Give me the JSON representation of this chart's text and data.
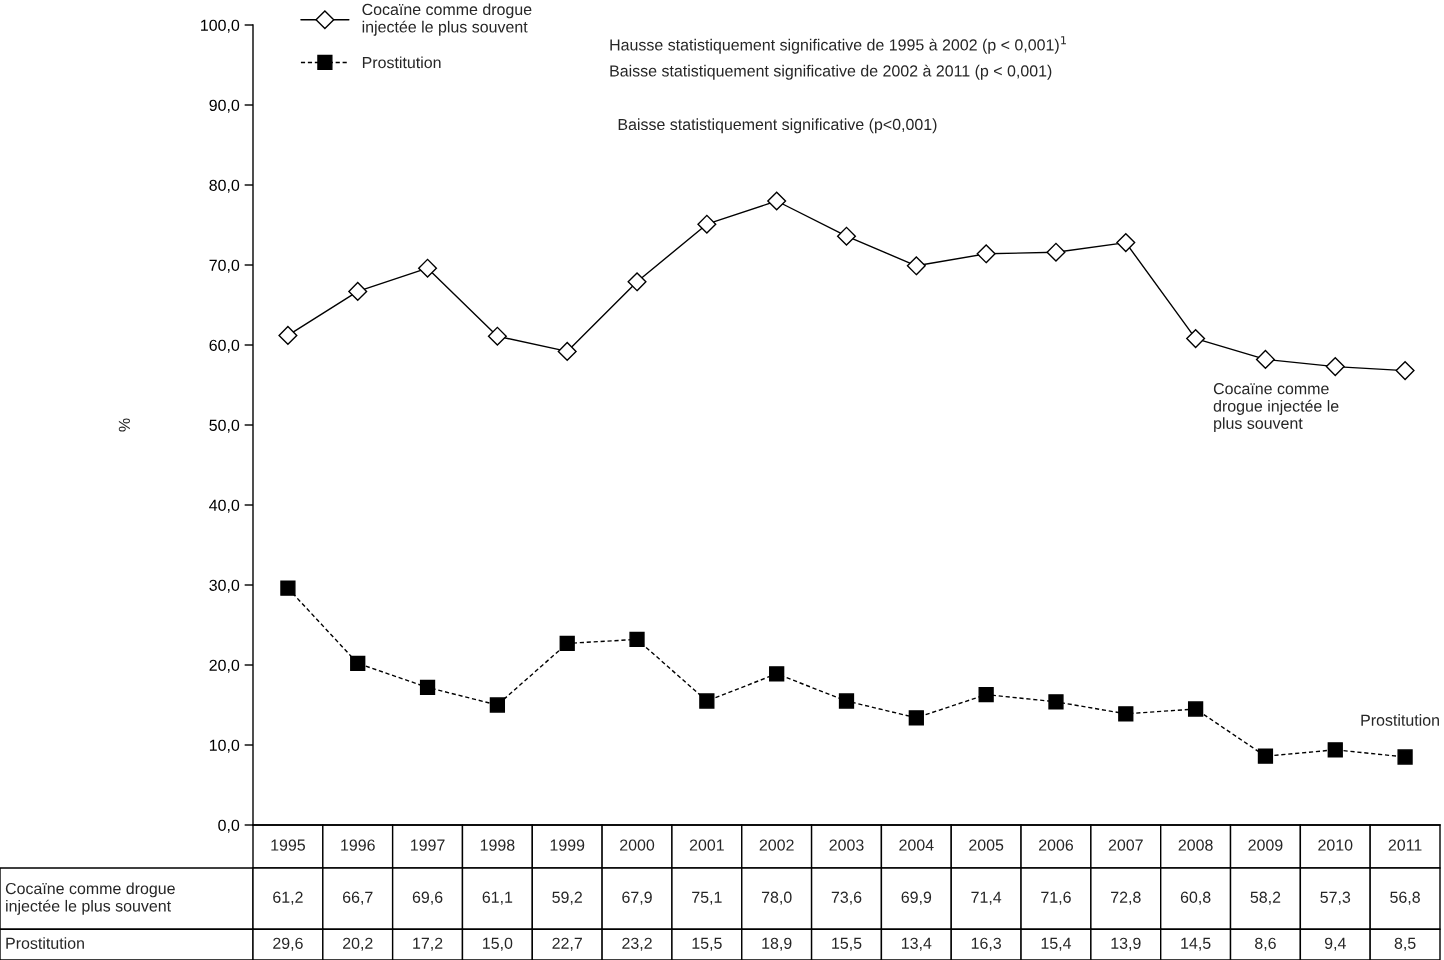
{
  "chart_data": {
    "type": "line",
    "ylabel": "%",
    "categories": [
      "1995",
      "1996",
      "1997",
      "1998",
      "1999",
      "2000",
      "2001",
      "2002",
      "2003",
      "2004",
      "2005",
      "2006",
      "2007",
      "2008",
      "2009",
      "2010",
      "2011"
    ],
    "series": [
      {
        "name": "Cocaïne comme drogue injectée le plus souvent",
        "color": "#000000",
        "marker": "diamond",
        "line_style": "solid",
        "values": [
          61.2,
          66.7,
          69.6,
          61.1,
          59.2,
          67.9,
          75.1,
          78.0,
          73.6,
          69.9,
          71.4,
          71.6,
          72.8,
          60.8,
          58.2,
          57.3,
          56.8
        ],
        "value_labels": [
          "61,2",
          "66,7",
          "69,6",
          "61,1",
          "59,2",
          "67,9",
          "75,1",
          "78,0",
          "73,6",
          "69,9",
          "71,4",
          "71,6",
          "72,8",
          "60,8",
          "58,2",
          "57,3",
          "56,8"
        ]
      },
      {
        "name": "Prostitution",
        "color": "#000000",
        "marker": "square",
        "line_style": "dashed",
        "values": [
          29.6,
          20.2,
          17.2,
          15.0,
          22.7,
          23.2,
          15.5,
          18.9,
          15.5,
          13.4,
          16.3,
          15.4,
          13.9,
          14.5,
          8.6,
          9.4,
          8.5
        ],
        "value_labels": [
          "29,6",
          "20,2",
          "17,2",
          "15,0",
          "22,7",
          "23,2",
          "15,5",
          "18,9",
          "15,5",
          "13,4",
          "16,3",
          "15,4",
          "13,9",
          "14,5",
          "8,6",
          "9,4",
          "8,5"
        ]
      }
    ],
    "ylim": [
      0,
      100
    ],
    "yticks": [
      {
        "value": 0,
        "label": "0,0"
      },
      {
        "value": 10,
        "label": "10,0"
      },
      {
        "value": 20,
        "label": "20,0"
      },
      {
        "value": 30,
        "label": "30,0"
      },
      {
        "value": 40,
        "label": "40,0"
      },
      {
        "value": 50,
        "label": "50,0"
      },
      {
        "value": 60,
        "label": "60,0"
      },
      {
        "value": 70,
        "label": "70,0"
      },
      {
        "value": 80,
        "label": "80,0"
      },
      {
        "value": 90,
        "label": "90,0"
      },
      {
        "value": 100,
        "label": "100,0"
      }
    ],
    "tick_labels": "y",
    "grid": false,
    "legend": "top left",
    "annotations": [
      "Hausse statistiquement significative de 1995 à 2002 (p < 0,001)$^{1}$",
      "Baisse statistiquement significative de 2002 à 2011 (p < 0,001)",
      "Baisse statistiquement significative (p<0,001)"
    ]
  }
}
